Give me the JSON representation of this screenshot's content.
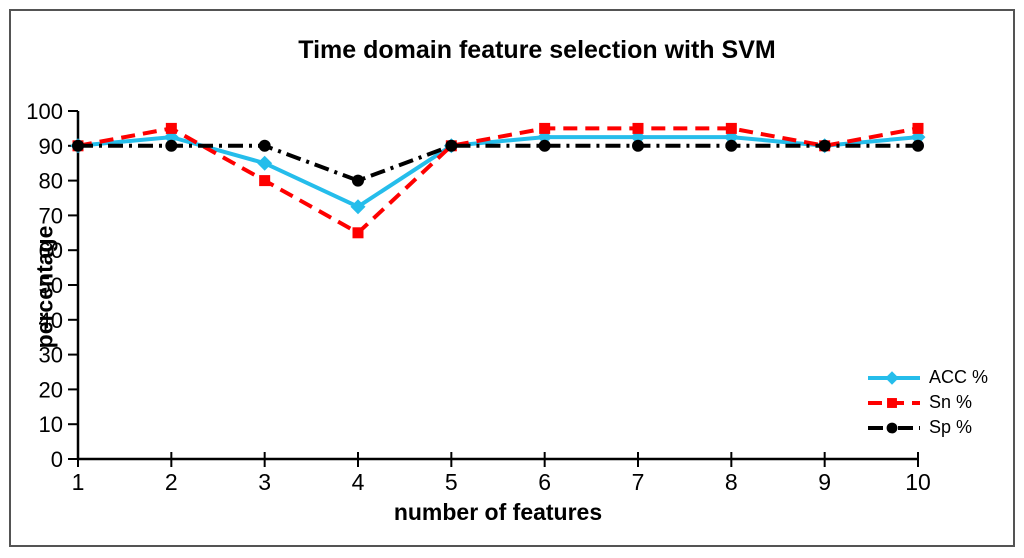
{
  "figure": {
    "border_color": "#545454",
    "background": "#ffffff"
  },
  "chart_data": {
    "type": "line",
    "title": "Time domain feature selection with SVM",
    "xlabel": "number of features",
    "ylabel": "percentage",
    "x": [
      1,
      2,
      3,
      4,
      5,
      6,
      7,
      8,
      9,
      10
    ],
    "ylim": [
      0,
      100
    ],
    "yticks": [
      0,
      10,
      20,
      30,
      40,
      50,
      60,
      70,
      80,
      90,
      100
    ],
    "grid": false,
    "legend_position": "right",
    "axis_color": "#000000",
    "series": [
      {
        "name": "ACC %",
        "color": "#25bdeb",
        "line_style": "solid",
        "marker": "diamond",
        "values": [
          90,
          92.5,
          85,
          72.5,
          90,
          92.5,
          92.5,
          92.5,
          90,
          92.5
        ]
      },
      {
        "name": "Sn %",
        "color": "#fe0000",
        "line_style": "dashed",
        "marker": "square",
        "values": [
          90,
          95,
          80,
          65,
          90,
          95,
          95,
          95,
          90,
          95
        ]
      },
      {
        "name": "Sp %",
        "color": "#000000",
        "line_style": "dash-dot",
        "marker": "circle",
        "values": [
          90,
          90,
          90,
          80,
          90,
          90,
          90,
          90,
          90,
          90
        ]
      }
    ]
  }
}
